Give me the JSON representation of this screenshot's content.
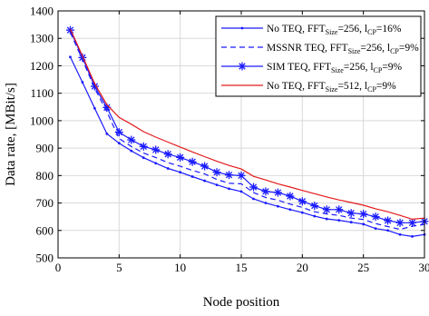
{
  "chart_data": {
    "type": "line",
    "xlabel": "Node position",
    "ylabel": "Data rate, [MBit/s]",
    "xlim": [
      0,
      30
    ],
    "ylim": [
      500,
      1400
    ],
    "xticks": [
      0,
      5,
      10,
      15,
      20,
      25,
      30
    ],
    "yticks": [
      500,
      600,
      700,
      800,
      900,
      1000,
      1100,
      1200,
      1300,
      1400
    ],
    "grid": true,
    "legend_position": "top-right",
    "x": [
      1,
      2,
      3,
      4,
      5,
      6,
      7,
      8,
      9,
      10,
      11,
      12,
      13,
      14,
      15,
      16,
      17,
      18,
      19,
      20,
      21,
      22,
      23,
      24,
      25,
      26,
      27,
      28,
      29,
      30
    ],
    "series": [
      {
        "name": "No TEQ, FFT_Size=256, l_CP=16%",
        "legend": {
          "pre": "No TEQ, FFT",
          "sub1": "Size",
          "mid": "=256, l",
          "sub2": "CP",
          "post": "=16%"
        },
        "color": "#1a1aff",
        "style": "solid",
        "marker": "dot",
        "values": [
          1232,
          1140,
          1045,
          952,
          918,
          890,
          865,
          845,
          826,
          812,
          796,
          781,
          766,
          752,
          742,
          715,
          700,
          688,
          676,
          665,
          652,
          642,
          637,
          630,
          623,
          607,
          600,
          585,
          578,
          585
        ]
      },
      {
        "name": "MSSNR TEQ, FFT_Size=256, l_CP=9%",
        "legend": {
          "pre": "MSSNR TEQ, FFT",
          "sub1": "Size",
          "mid": "=256, l",
          "sub2": "CP",
          "post": "=9%"
        },
        "color": "#1a1aff",
        "style": "dashed",
        "marker": "none",
        "values": [
          1322,
          1222,
          1118,
          1032,
          935,
          906,
          882,
          866,
          847,
          834,
          819,
          806,
          786,
          772,
          770,
          738,
          720,
          710,
          696,
          684,
          668,
          660,
          655,
          645,
          640,
          625,
          614,
          604,
          615,
          622
        ]
      },
      {
        "name": "SIM TEQ, FFT_Size=256, l_CP=9%",
        "legend": {
          "pre": "SIM TEQ, FFT",
          "sub1": "Size",
          "mid": "=256, l",
          "sub2": "CP",
          "post": "=9%"
        },
        "color": "#1a1aff",
        "style": "solid",
        "marker": "star",
        "values": [
          1330,
          1230,
          1125,
          1048,
          958,
          930,
          906,
          894,
          878,
          866,
          850,
          834,
          812,
          802,
          800,
          758,
          742,
          738,
          725,
          706,
          690,
          676,
          676,
          663,
          660,
          650,
          636,
          628,
          628,
          633
        ]
      },
      {
        "name": "No TEQ, FFT_Size=512, l_CP=9%",
        "legend": {
          "pre": "No TEQ, FFT",
          "sub1": "Size",
          "mid": "=512, l",
          "sub2": "CP",
          "post": "=9%"
        },
        "color": "#e31a1c",
        "style": "solid",
        "marker": "none",
        "values": [
          1334,
          1236,
          1135,
          1058,
          1012,
          987,
          960,
          940,
          922,
          904,
          886,
          869,
          852,
          837,
          824,
          797,
          784,
          770,
          758,
          746,
          734,
          722,
          711,
          702,
          692,
          679,
          668,
          655,
          641,
          645
        ]
      }
    ]
  }
}
